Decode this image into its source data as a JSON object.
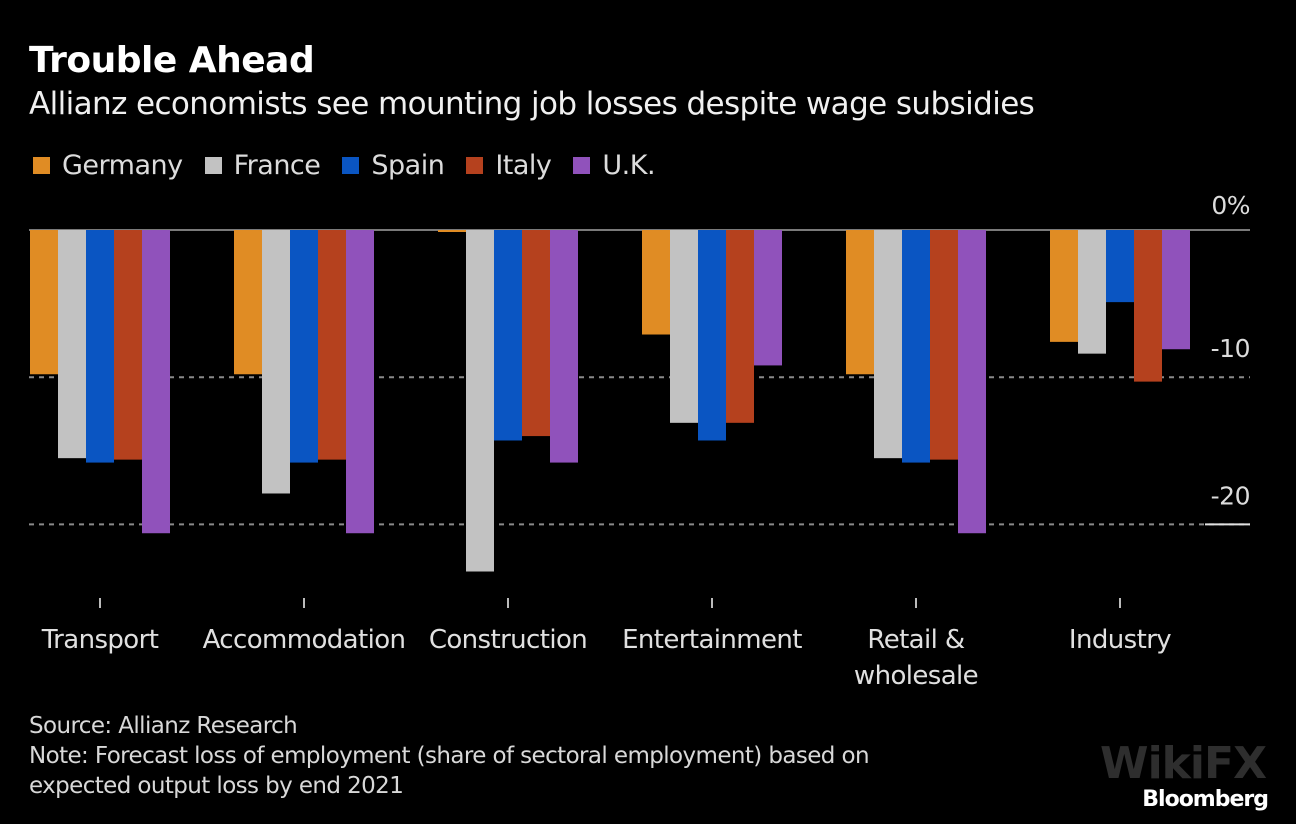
{
  "header": {
    "title": "Trouble Ahead",
    "subtitle": "Allianz economists see mounting job losses despite wage subsidies"
  },
  "footer": {
    "source": "Source: Allianz Research",
    "note_line1": "Note: Forecast loss of employment (share of sectoral employment) based on",
    "note_line2": "expected output loss by end 2021",
    "brand": "Bloomberg",
    "watermark": "WikiFX"
  },
  "chart_data": {
    "type": "bar",
    "title": "Trouble Ahead",
    "subtitle": "Allianz economists see mounting job losses despite wage subsidies",
    "xlabel": "",
    "ylabel": "",
    "categories": [
      [
        "Transport"
      ],
      [
        "Accommodation"
      ],
      [
        "Construction"
      ],
      [
        "Entertainment"
      ],
      [
        "Retail &",
        "wholesale"
      ],
      [
        "Industry"
      ]
    ],
    "category_names": [
      "Transport",
      "Accommodation",
      "Construction",
      "Entertainment",
      "Retail & wholesale",
      "Industry"
    ],
    "series": [
      {
        "name": "Germany",
        "color": "#e08c24",
        "values": [
          -9.8,
          -9.8,
          -0.1,
          -7.1,
          -9.8,
          -7.6
        ]
      },
      {
        "name": "France",
        "color": "#c2c2c2",
        "values": [
          -15.5,
          -17.9,
          -23.2,
          -13.1,
          -15.5,
          -8.4
        ]
      },
      {
        "name": "Spain",
        "color": "#0a55c2",
        "values": [
          -15.8,
          -15.8,
          -14.3,
          -14.3,
          -15.8,
          -4.9
        ]
      },
      {
        "name": "Italy",
        "color": "#b5411e",
        "values": [
          -15.6,
          -15.6,
          -14.0,
          -13.1,
          -15.6,
          -10.3
        ]
      },
      {
        "name": "U.K.",
        "color": "#9052bb",
        "values": [
          -20.6,
          -20.6,
          -15.8,
          -9.2,
          -20.6,
          -8.1
        ]
      }
    ],
    "y_ticks": [
      {
        "value": 0,
        "label": "0%"
      },
      {
        "value": -10,
        "label": "-10"
      },
      {
        "value": -20,
        "label": "-20"
      }
    ],
    "ylim": [
      -25,
      0
    ],
    "grid": "dashed horizontal at -10 and -20",
    "legend_position": "top-left"
  }
}
